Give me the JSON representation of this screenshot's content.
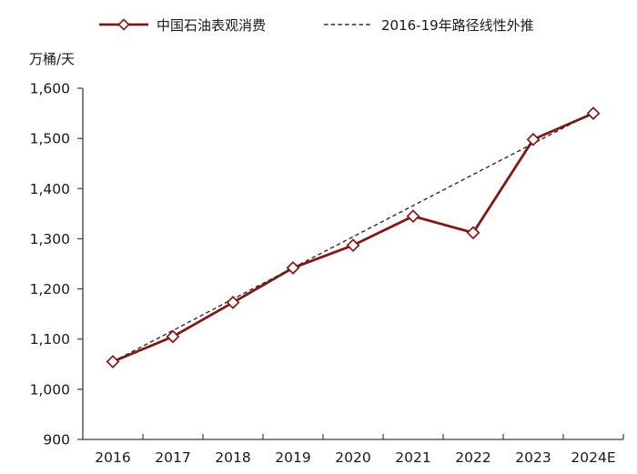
{
  "chart_data": {
    "type": "line",
    "title": "",
    "ylabel": "万桶/天",
    "xlabel": "",
    "categories": [
      "2016",
      "2017",
      "2018",
      "2019",
      "2020",
      "2021",
      "2022",
      "2023",
      "2024E"
    ],
    "series": [
      {
        "name": "中国石油表观消费",
        "values": [
          1055,
          1105,
          1173,
          1242,
          1287,
          1345,
          1312,
          1498,
          1550
        ],
        "color": "#821815",
        "line_style": "solid",
        "marker": "open-diamond"
      },
      {
        "name": "2016-19年路径线性外推",
        "values": [
          1055,
          1117,
          1180,
          1242,
          1304,
          1366,
          1428,
          1490,
          1552
        ],
        "color": "#2e2e2e",
        "line_style": "dashed",
        "marker": "none"
      }
    ],
    "y_axis": {
      "min": 900,
      "max": 1600,
      "step": 100,
      "tick_labels": [
        "900",
        "1,000",
        "1,100",
        "1,200",
        "1,300",
        "1,400",
        "1,500",
        "1,600"
      ]
    },
    "legend_position": "top",
    "grid": "off",
    "axis_color": "#3f3f3f",
    "text_color": "#1a1a1a"
  }
}
